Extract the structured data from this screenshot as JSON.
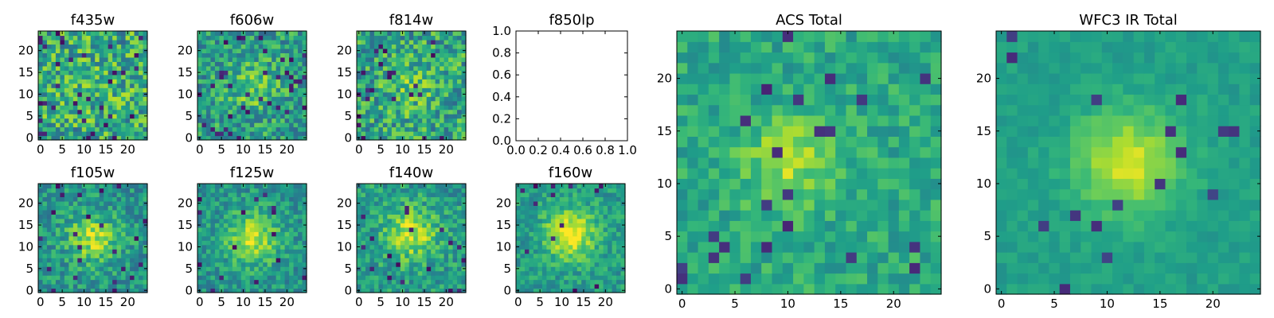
{
  "figure": {
    "colormap": "viridis",
    "background": "#ffffff"
  },
  "chart_data": [
    {
      "type": "heatmap",
      "title": "f435w",
      "nx": 25,
      "ny": 25,
      "seed": 11,
      "bright": 0.6,
      "contrast": 1.0,
      "center": [
        12,
        12
      ],
      "blob": 0.05,
      "sigma": 6,
      "noise": 0.55,
      "dark_frac": 0.05,
      "xticks": [
        "0",
        "5",
        "10",
        "15",
        "20"
      ],
      "xtick_vals": [
        0,
        5,
        10,
        15,
        20
      ],
      "yticks": [
        "0",
        "5",
        "10",
        "15",
        "20"
      ],
      "ytick_vals": [
        0,
        5,
        10,
        15,
        20
      ]
    },
    {
      "type": "heatmap",
      "title": "f606w",
      "nx": 25,
      "ny": 25,
      "seed": 23,
      "bright": 0.55,
      "contrast": 1.0,
      "center": [
        12,
        12
      ],
      "blob": 0.2,
      "sigma": 4,
      "noise": 0.45,
      "dark_frac": 0.05,
      "xticks": [
        "0",
        "5",
        "10",
        "15",
        "20"
      ],
      "xtick_vals": [
        0,
        5,
        10,
        15,
        20
      ],
      "yticks": [
        "0",
        "5",
        "10",
        "15",
        "20"
      ],
      "ytick_vals": [
        0,
        5,
        10,
        15,
        20
      ]
    },
    {
      "type": "heatmap",
      "title": "f814w",
      "nx": 25,
      "ny": 25,
      "seed": 37,
      "bright": 0.58,
      "contrast": 1.0,
      "center": [
        12,
        12
      ],
      "blob": 0.15,
      "sigma": 4,
      "noise": 0.5,
      "dark_frac": 0.04,
      "xticks": [
        "0",
        "5",
        "10",
        "15",
        "20"
      ],
      "xtick_vals": [
        0,
        5,
        10,
        15,
        20
      ],
      "yticks": [
        "0",
        "5",
        "10",
        "15",
        "20"
      ],
      "ytick_vals": [
        0,
        5,
        10,
        15,
        20
      ]
    },
    {
      "type": "empty",
      "title": "f850lp",
      "xlim": [
        0,
        1
      ],
      "ylim": [
        0,
        1
      ],
      "xticks": [
        "0.0",
        "0.2",
        "0.4",
        "0.6",
        "0.8",
        "1.0"
      ],
      "xtick_vals": [
        0,
        0.2,
        0.4,
        0.6,
        0.8,
        1.0
      ],
      "yticks": [
        "0.0",
        "0.2",
        "0.4",
        "0.6",
        "0.8",
        "1.0"
      ],
      "ytick_vals": [
        0,
        0.2,
        0.4,
        0.6,
        0.8,
        1.0
      ]
    },
    {
      "type": "heatmap",
      "title": "ACS Total",
      "nx": 25,
      "ny": 25,
      "seed": 51,
      "bright": 0.62,
      "contrast": 0.85,
      "center": [
        10,
        12
      ],
      "blob": 0.3,
      "sigma": 3,
      "noise": 0.3,
      "dark_frac": 0.03,
      "xticks": [
        "0",
        "5",
        "10",
        "15",
        "20"
      ],
      "xtick_vals": [
        0,
        5,
        10,
        15,
        20
      ],
      "yticks": [
        "0",
        "5",
        "10",
        "15",
        "20"
      ],
      "ytick_vals": [
        0,
        5,
        10,
        15,
        20
      ]
    },
    {
      "type": "heatmap",
      "title": "f105w",
      "nx": 25,
      "ny": 25,
      "seed": 67,
      "bright": 0.52,
      "contrast": 1.0,
      "center": [
        12,
        12
      ],
      "blob": 0.35,
      "sigma": 4,
      "noise": 0.35,
      "dark_frac": 0.03,
      "xticks": [
        "0",
        "5",
        "10",
        "15",
        "20"
      ],
      "xtick_vals": [
        0,
        5,
        10,
        15,
        20
      ],
      "yticks": [
        "0",
        "5",
        "10",
        "15",
        "20"
      ],
      "ytick_vals": [
        0,
        5,
        10,
        15,
        20
      ]
    },
    {
      "type": "heatmap",
      "title": "f125w",
      "nx": 25,
      "ny": 25,
      "seed": 79,
      "bright": 0.52,
      "contrast": 1.0,
      "center": [
        12,
        12
      ],
      "blob": 0.4,
      "sigma": 4,
      "noise": 0.32,
      "dark_frac": 0.03,
      "xticks": [
        "0",
        "5",
        "10",
        "15",
        "20"
      ],
      "xtick_vals": [
        0,
        5,
        10,
        15,
        20
      ],
      "yticks": [
        "0",
        "5",
        "10",
        "15",
        "20"
      ],
      "ytick_vals": [
        0,
        5,
        10,
        15,
        20
      ]
    },
    {
      "type": "heatmap",
      "title": "f140w",
      "nx": 25,
      "ny": 25,
      "seed": 83,
      "bright": 0.55,
      "contrast": 1.0,
      "center": [
        12,
        13
      ],
      "blob": 0.35,
      "sigma": 4,
      "noise": 0.35,
      "dark_frac": 0.03,
      "xticks": [
        "0",
        "5",
        "10",
        "15",
        "20"
      ],
      "xtick_vals": [
        0,
        5,
        10,
        15,
        20
      ],
      "yticks": [
        "0",
        "5",
        "10",
        "15",
        "20"
      ],
      "ytick_vals": [
        0,
        5,
        10,
        15,
        20
      ]
    },
    {
      "type": "heatmap",
      "title": "f160w",
      "nx": 25,
      "ny": 25,
      "seed": 97,
      "bright": 0.55,
      "contrast": 1.0,
      "center": [
        12,
        13
      ],
      "blob": 0.45,
      "sigma": 4,
      "noise": 0.28,
      "dark_frac": 0.03,
      "xticks": [
        "0",
        "5",
        "10",
        "15",
        "20"
      ],
      "xtick_vals": [
        0,
        5,
        10,
        15,
        20
      ],
      "yticks": [
        "0",
        "5",
        "10",
        "15",
        "20"
      ],
      "ytick_vals": [
        0,
        5,
        10,
        15,
        20
      ]
    },
    {
      "type": "heatmap",
      "title": "WFC3 IR Total",
      "nx": 25,
      "ny": 25,
      "seed": 101,
      "bright": 0.58,
      "contrast": 0.8,
      "center": [
        12,
        12
      ],
      "blob": 0.45,
      "sigma": 3.5,
      "noise": 0.15,
      "dark_frac": 0.02,
      "xticks": [
        "0",
        "5",
        "10",
        "15",
        "20"
      ],
      "xtick_vals": [
        0,
        5,
        10,
        15,
        20
      ],
      "yticks": [
        "0",
        "5",
        "10",
        "15",
        "20"
      ],
      "ytick_vals": [
        0,
        5,
        10,
        15,
        20
      ]
    }
  ]
}
